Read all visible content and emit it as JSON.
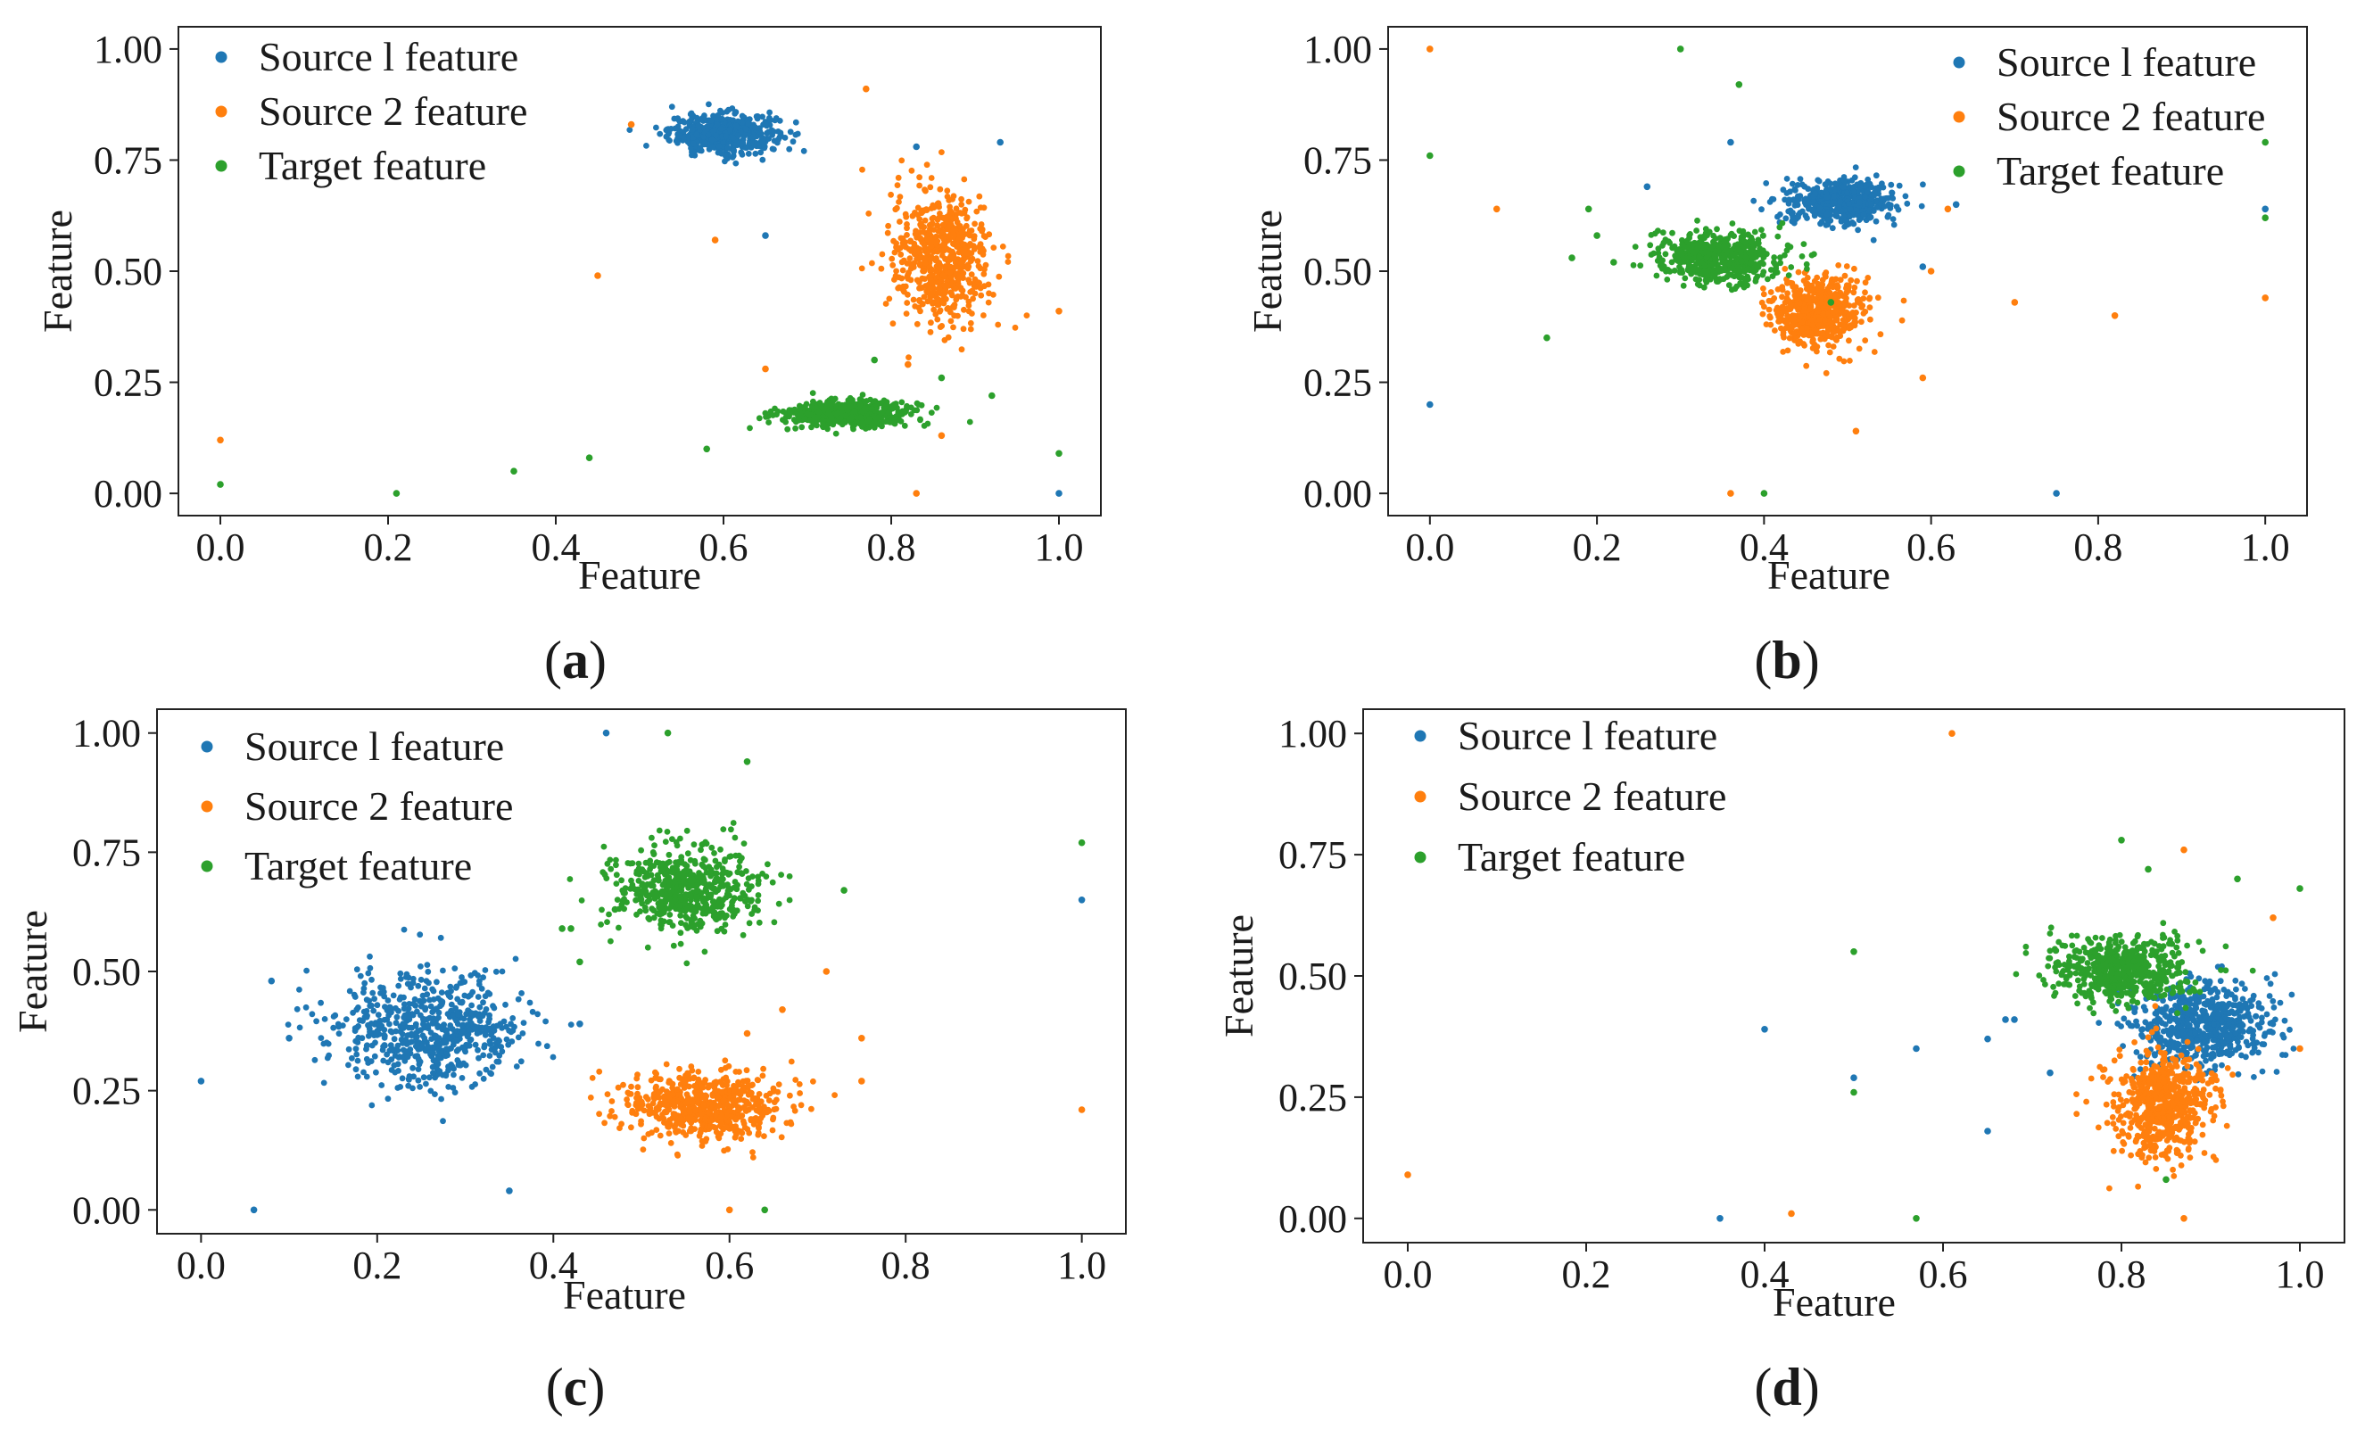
{
  "colors": {
    "series0": "#1f77b4",
    "series1": "#ff7f0e",
    "series2": "#2ca02c"
  },
  "chart_data": [
    {
      "type": "scatter",
      "panel": "a",
      "xlabel": "Feature",
      "ylabel": "Feature",
      "xlim": [
        -0.05,
        1.05
      ],
      "ylim": [
        -0.05,
        1.05
      ],
      "xticks": [
        "0.0",
        "0.2",
        "0.4",
        "0.6",
        "0.8",
        "1.0"
      ],
      "yticks": [
        "0.00",
        "0.25",
        "0.50",
        "0.75",
        "1.00"
      ],
      "legend": {
        "position": "top-left",
        "entries": [
          "Source l feature",
          "Source 2 feature",
          "Target feature"
        ]
      },
      "series": [
        {
          "name": "Source l feature",
          "cluster": {
            "cx": 0.6,
            "cy": 0.81,
            "sx": 0.032,
            "sy": 0.022,
            "n": 520
          },
          "outliers": [
            [
              0.65,
              0.58
            ],
            [
              0.83,
              0.78
            ],
            [
              0.93,
              0.79
            ],
            [
              1.0,
              0.0
            ]
          ]
        },
        {
          "name": "Source 2 feature",
          "cluster": {
            "cx": 0.86,
            "cy": 0.53,
            "sx": 0.03,
            "sy": 0.075,
            "n": 580
          },
          "outliers": [
            [
              0.0,
              0.12
            ],
            [
              0.45,
              0.49
            ],
            [
              0.49,
              0.83
            ],
            [
              0.59,
              0.57
            ],
            [
              0.77,
              0.91
            ],
            [
              0.82,
              0.29
            ],
            [
              0.83,
              0.0
            ],
            [
              0.86,
              0.13
            ],
            [
              1.0,
              0.41
            ],
            [
              0.65,
              0.28
            ]
          ]
        },
        {
          "name": "Target feature",
          "cluster": {
            "cx": 0.75,
            "cy": 0.18,
            "sx": 0.04,
            "sy": 0.014,
            "n": 520
          },
          "outliers": [
            [
              0.0,
              0.02
            ],
            [
              0.21,
              0.0
            ],
            [
              0.35,
              0.05
            ],
            [
              0.44,
              0.08
            ],
            [
              0.58,
              0.1
            ],
            [
              0.78,
              0.3
            ],
            [
              0.92,
              0.22
            ],
            [
              1.0,
              0.09
            ],
            [
              0.86,
              0.26
            ]
          ]
        }
      ]
    },
    {
      "type": "scatter",
      "panel": "b",
      "xlabel": "Feature",
      "ylabel": "Feature",
      "xlim": [
        -0.05,
        1.05
      ],
      "ylim": [
        -0.05,
        1.05
      ],
      "xticks": [
        "0.0",
        "0.2",
        "0.4",
        "0.6",
        "0.8",
        "1.0"
      ],
      "yticks": [
        "0.00",
        "0.25",
        "0.50",
        "0.75",
        "1.00"
      ],
      "legend": {
        "position": "top-right",
        "entries": [
          "Source l feature",
          "Source 2 feature",
          "Target feature"
        ]
      },
      "series": [
        {
          "name": "Source l feature",
          "cluster": {
            "cx": 0.49,
            "cy": 0.655,
            "sx": 0.033,
            "sy": 0.024,
            "n": 520
          },
          "outliers": [
            [
              0.0,
              0.2
            ],
            [
              0.26,
              0.69
            ],
            [
              0.36,
              0.79
            ],
            [
              0.59,
              0.51
            ],
            [
              0.63,
              0.65
            ],
            [
              0.75,
              0.0
            ],
            [
              1.0,
              0.64
            ],
            [
              0.43,
              0.66
            ]
          ]
        },
        {
          "name": "Source 2 feature",
          "cluster": {
            "cx": 0.465,
            "cy": 0.41,
            "sx": 0.027,
            "sy": 0.038,
            "n": 560
          },
          "outliers": [
            [
              0.0,
              1.0
            ],
            [
              0.08,
              0.64
            ],
            [
              0.36,
              0.0
            ],
            [
              0.51,
              0.14
            ],
            [
              0.59,
              0.26
            ],
            [
              0.6,
              0.5
            ],
            [
              0.7,
              0.43
            ],
            [
              0.82,
              0.4
            ],
            [
              1.0,
              0.44
            ],
            [
              0.62,
              0.64
            ]
          ]
        },
        {
          "name": "Target feature",
          "cluster": {
            "cx": 0.345,
            "cy": 0.53,
            "sx": 0.038,
            "sy": 0.03,
            "n": 560
          },
          "outliers": [
            [
              0.0,
              0.76
            ],
            [
              0.14,
              0.35
            ],
            [
              0.17,
              0.53
            ],
            [
              0.19,
              0.64
            ],
            [
              0.2,
              0.58
            ],
            [
              0.3,
              1.0
            ],
            [
              0.37,
              0.92
            ],
            [
              0.4,
              0.0
            ],
            [
              1.0,
              0.79
            ],
            [
              1.0,
              0.62
            ],
            [
              0.48,
              0.43
            ],
            [
              0.22,
              0.52
            ]
          ]
        }
      ]
    },
    {
      "type": "scatter",
      "panel": "c",
      "xlabel": "Feature",
      "ylabel": "Feature",
      "xlim": [
        -0.05,
        1.05
      ],
      "ylim": [
        -0.05,
        1.05
      ],
      "xticks": [
        "0.0",
        "0.2",
        "0.4",
        "0.6",
        "0.8",
        "1.0"
      ],
      "yticks": [
        "0.00",
        "0.25",
        "0.50",
        "0.75",
        "1.00"
      ],
      "legend": {
        "position": "top-left",
        "entries": [
          "Source l feature",
          "Source 2 feature",
          "Target feature"
        ]
      },
      "series": [
        {
          "name": "Source l feature",
          "cluster": {
            "cx": 0.26,
            "cy": 0.38,
            "sx": 0.055,
            "sy": 0.06,
            "n": 600
          },
          "outliers": [
            [
              0.0,
              0.27
            ],
            [
              0.06,
              0.0
            ],
            [
              0.08,
              0.48
            ],
            [
              0.35,
              0.04
            ],
            [
              0.43,
              0.39
            ],
            [
              0.46,
              1.0
            ],
            [
              1.0,
              0.65
            ],
            [
              0.1,
              0.36
            ]
          ]
        },
        {
          "name": "Source 2 feature",
          "cluster": {
            "cx": 0.57,
            "cy": 0.215,
            "sx": 0.045,
            "sy": 0.035,
            "n": 620
          },
          "outliers": [
            [
              0.6,
              0.0
            ],
            [
              0.66,
              0.42
            ],
            [
              0.71,
              0.5
            ],
            [
              0.75,
              0.27
            ],
            [
              0.75,
              0.36
            ],
            [
              1.0,
              0.21
            ],
            [
              0.62,
              0.37
            ]
          ]
        },
        {
          "name": "Target feature",
          "cluster": {
            "cx": 0.55,
            "cy": 0.67,
            "sx": 0.042,
            "sy": 0.045,
            "n": 560
          },
          "outliers": [
            [
              0.43,
              0.52
            ],
            [
              0.41,
              0.59
            ],
            [
              0.42,
              0.59
            ],
            [
              0.53,
              1.0
            ],
            [
              0.62,
              0.94
            ],
            [
              0.64,
              0.0
            ],
            [
              0.73,
              0.67
            ],
            [
              1.0,
              0.77
            ],
            [
              0.47,
              0.63
            ]
          ]
        }
      ]
    },
    {
      "type": "scatter",
      "panel": "d",
      "xlabel": "Feature",
      "ylabel": "Feature",
      "xlim": [
        -0.05,
        1.05
      ],
      "ylim": [
        -0.05,
        1.05
      ],
      "xticks": [
        "0.0",
        "0.2",
        "0.4",
        "0.6",
        "0.8",
        "1.0"
      ],
      "yticks": [
        "0.00",
        "0.25",
        "0.50",
        "0.75",
        "1.00"
      ],
      "legend": {
        "position": "top-left",
        "entries": [
          "Source l feature",
          "Source 2 feature",
          "Target feature"
        ]
      },
      "series": [
        {
          "name": "Source l feature",
          "cluster": {
            "cx": 0.89,
            "cy": 0.4,
            "sx": 0.04,
            "sy": 0.045,
            "n": 600
          },
          "outliers": [
            [
              0.35,
              0.0
            ],
            [
              0.4,
              0.39
            ],
            [
              0.5,
              0.29
            ],
            [
              0.57,
              0.35
            ],
            [
              0.65,
              0.37
            ],
            [
              0.67,
              0.41
            ],
            [
              0.68,
              0.41
            ],
            [
              0.65,
              0.18
            ],
            [
              0.72,
              0.3
            ]
          ]
        },
        {
          "name": "Source 2 feature",
          "cluster": {
            "cx": 0.845,
            "cy": 0.235,
            "sx": 0.03,
            "sy": 0.055,
            "n": 580
          },
          "outliers": [
            [
              0.0,
              0.09
            ],
            [
              0.43,
              0.01
            ],
            [
              0.61,
              1.0
            ],
            [
              0.87,
              0.76
            ],
            [
              0.97,
              0.62
            ],
            [
              1.0,
              0.35
            ],
            [
              0.87,
              0.0
            ]
          ]
        },
        {
          "name": "Target feature",
          "cluster": {
            "cx": 0.8,
            "cy": 0.51,
            "sx": 0.038,
            "sy": 0.035,
            "n": 560
          },
          "outliers": [
            [
              0.5,
              0.55
            ],
            [
              0.5,
              0.26
            ],
            [
              0.57,
              0.0
            ],
            [
              0.8,
              0.78
            ],
            [
              0.83,
              0.72
            ],
            [
              0.93,
              0.7
            ],
            [
              1.0,
              0.68
            ],
            [
              0.85,
              0.08
            ]
          ]
        }
      ]
    }
  ],
  "panel_labels": [
    "a",
    "b",
    "c",
    "d"
  ],
  "axis_label_x": "Feature",
  "axis_label_y": "Feature"
}
